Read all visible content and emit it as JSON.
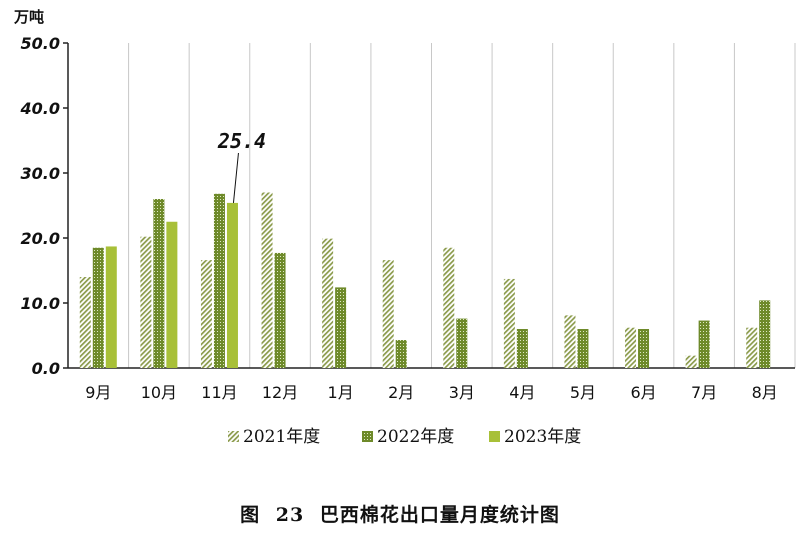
{
  "chart_data": {
    "type": "bar",
    "unit_label": "万吨",
    "categories": [
      "9月",
      "10月",
      "11月",
      "12月",
      "1月",
      "2月",
      "3月",
      "4月",
      "5月",
      "6月",
      "7月",
      "8月"
    ],
    "series": [
      {
        "name": "2021年度",
        "values": [
          14.0,
          20.2,
          16.6,
          27.0,
          19.9,
          16.6,
          18.5,
          13.7,
          8.1,
          6.2,
          1.9,
          6.2
        ],
        "color": "#8a9a4a",
        "pattern": "diagonal-hatch"
      },
      {
        "name": "2022年度",
        "values": [
          18.5,
          26.0,
          26.8,
          17.7,
          12.4,
          4.3,
          7.6,
          6.0,
          6.0,
          6.0,
          7.3,
          10.4
        ],
        "color": "#6e8a2a",
        "pattern": "dotted"
      },
      {
        "name": "2023年度",
        "values": [
          18.7,
          22.5,
          25.4,
          null,
          null,
          null,
          null,
          null,
          null,
          null,
          null,
          null
        ],
        "color": "#a8c038",
        "pattern": "solid"
      }
    ],
    "ylim": [
      0,
      50
    ],
    "yticks": [
      "0.0",
      "10.0",
      "20.0",
      "30.0",
      "40.0",
      "50.0"
    ],
    "grid": true,
    "legend_position": "bottom",
    "annotation": {
      "text": "25.4",
      "series_index": 2,
      "category_index": 2
    }
  },
  "caption": "图 23  巴西棉花出口量月度统计图"
}
